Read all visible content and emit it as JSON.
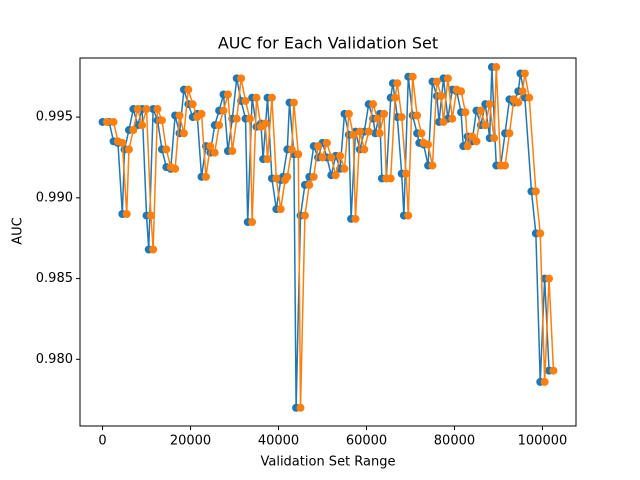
{
  "chart_data": {
    "type": "line",
    "title": "AUC for Each Validation Set",
    "x_label": "Validation Set Range",
    "y_label": "AUC",
    "xlim": [
      -5125,
      107625
    ],
    "ylim": [
      0.97587,
      0.99866
    ],
    "xticks": [
      0,
      20000,
      40000,
      60000,
      80000,
      100000
    ],
    "yticks": [
      {
        "value": 0.98,
        "label": "0.980"
      },
      0.985,
      {
        "value": 0.99,
        "label": "0.990"
      },
      0.995
    ],
    "series": [
      {
        "color": "#1f77b4",
        "x": [
          0,
          1500,
          2500,
          3500,
          4500,
          5000,
          6000,
          7000,
          8000,
          9000,
          10000,
          10500,
          11500,
          12500,
          13500,
          14500,
          15500,
          16500,
          17500,
          18500,
          19500,
          20500,
          21500,
          22500,
          23500,
          24500,
          25500,
          26500,
          27500,
          28500,
          29500,
          30500,
          31500,
          32500,
          33000,
          34000,
          35000,
          36000,
          36500,
          37500,
          38500,
          39500,
          40500,
          41000,
          42000,
          42500,
          43500,
          44000,
          45000,
          46000,
          47000,
          48000,
          49000,
          50000,
          51000,
          52000,
          53000,
          54000,
          55000,
          56000,
          56500,
          57500,
          58500,
          59500,
          60500,
          61500,
          62000,
          63000,
          63500,
          64500,
          65500,
          66000,
          67000,
          68000,
          68500,
          69500,
          70500,
          71500,
          72000,
          73000,
          74000,
          75000,
          76000,
          76500,
          77500,
          78500,
          79500,
          80500,
          81500,
          82000,
          83000,
          84000,
          85000,
          86000,
          87000,
          88000,
          88500,
          89500,
          90500,
          91500,
          92500,
          93500,
          94500,
          95000,
          96000,
          97500,
          98500,
          99500,
          100500,
          101500
        ],
        "values": [
          0.9947,
          0.9947,
          0.9935,
          0.9934,
          0.989,
          0.993,
          0.9942,
          0.9955,
          0.9945,
          0.9955,
          0.9889,
          0.9868,
          0.9955,
          0.9948,
          0.993,
          0.9919,
          0.9918,
          0.9951,
          0.994,
          0.9967,
          0.9958,
          0.995,
          0.9952,
          0.9913,
          0.9932,
          0.9928,
          0.9945,
          0.9954,
          0.9964,
          0.9929,
          0.9949,
          0.9974,
          0.996,
          0.9949,
          0.9885,
          0.9962,
          0.9944,
          0.9946,
          0.9924,
          0.9962,
          0.9912,
          0.9893,
          0.9911,
          0.9913,
          0.993,
          0.9959,
          0.9927,
          0.977,
          0.9889,
          0.9908,
          0.9913,
          0.9932,
          0.9925,
          0.9934,
          0.9925,
          0.9914,
          0.9926,
          0.9918,
          0.9952,
          0.9939,
          0.9887,
          0.9941,
          0.993,
          0.9941,
          0.9958,
          0.9949,
          0.994,
          0.9952,
          0.9912,
          0.9912,
          0.9962,
          0.9971,
          0.995,
          0.9915,
          0.9889,
          0.9975,
          0.9951,
          0.994,
          0.9934,
          0.9933,
          0.992,
          0.9972,
          0.9963,
          0.9947,
          0.9974,
          0.9949,
          0.9967,
          0.9966,
          0.9953,
          0.9932,
          0.9938,
          0.9935,
          0.9954,
          0.9945,
          0.9958,
          0.9937,
          0.9981,
          0.992,
          0.992,
          0.994,
          0.9961,
          0.9959,
          0.9966,
          0.9977,
          0.9962,
          0.9904,
          0.9878,
          0.9786,
          0.985,
          0.9793
        ]
      },
      {
        "color": "#ff7f0e",
        "x": [
          1000,
          2500,
          3500,
          4500,
          5500,
          6000,
          7000,
          8000,
          9000,
          10000,
          11000,
          11500,
          12500,
          13500,
          14500,
          15500,
          16500,
          17500,
          18500,
          19500,
          20500,
          21500,
          22500,
          23500,
          24500,
          25500,
          26500,
          27500,
          28500,
          29500,
          30500,
          31500,
          32500,
          33500,
          34000,
          35000,
          36000,
          37000,
          37500,
          38500,
          39500,
          40500,
          41500,
          42000,
          43000,
          43500,
          44500,
          45000,
          46000,
          47000,
          48000,
          49000,
          50000,
          51000,
          52000,
          53000,
          54000,
          55000,
          56000,
          57000,
          57500,
          58500,
          59500,
          60500,
          61500,
          62500,
          63000,
          64000,
          64500,
          65500,
          66500,
          67000,
          68000,
          69000,
          69500,
          70500,
          71500,
          72500,
          73000,
          74000,
          75000,
          76000,
          77000,
          77500,
          78500,
          79500,
          80500,
          81500,
          82500,
          83000,
          84000,
          85000,
          86000,
          87000,
          88000,
          89000,
          89500,
          90500,
          91500,
          92500,
          93500,
          94500,
          95500,
          96000,
          97000,
          98500,
          99500,
          100500,
          101500,
          102500
        ],
        "values": [
          0.9947,
          0.9947,
          0.9935,
          0.9934,
          0.989,
          0.993,
          0.9942,
          0.9955,
          0.9945,
          0.9955,
          0.9889,
          0.9868,
          0.9955,
          0.9948,
          0.993,
          0.9919,
          0.9918,
          0.9951,
          0.994,
          0.9967,
          0.9958,
          0.995,
          0.9952,
          0.9913,
          0.9932,
          0.9928,
          0.9945,
          0.9954,
          0.9964,
          0.9929,
          0.9949,
          0.9974,
          0.996,
          0.9949,
          0.9885,
          0.9962,
          0.9944,
          0.9946,
          0.9924,
          0.9962,
          0.9912,
          0.9893,
          0.9911,
          0.9913,
          0.993,
          0.9959,
          0.9927,
          0.977,
          0.9889,
          0.9908,
          0.9913,
          0.9932,
          0.9925,
          0.9934,
          0.9925,
          0.9914,
          0.9926,
          0.9918,
          0.9952,
          0.9939,
          0.9887,
          0.9941,
          0.993,
          0.9941,
          0.9958,
          0.9949,
          0.994,
          0.9952,
          0.9912,
          0.9912,
          0.9962,
          0.9971,
          0.995,
          0.9915,
          0.9889,
          0.9975,
          0.9951,
          0.994,
          0.9934,
          0.9933,
          0.992,
          0.9972,
          0.9963,
          0.9947,
          0.9974,
          0.9949,
          0.9967,
          0.9966,
          0.9953,
          0.9932,
          0.9938,
          0.9935,
          0.9954,
          0.9945,
          0.9958,
          0.9937,
          0.9981,
          0.992,
          0.992,
          0.994,
          0.9961,
          0.9959,
          0.9966,
          0.9977,
          0.9962,
          0.9904,
          0.9878,
          0.9786,
          0.985,
          0.9793
        ]
      }
    ]
  }
}
